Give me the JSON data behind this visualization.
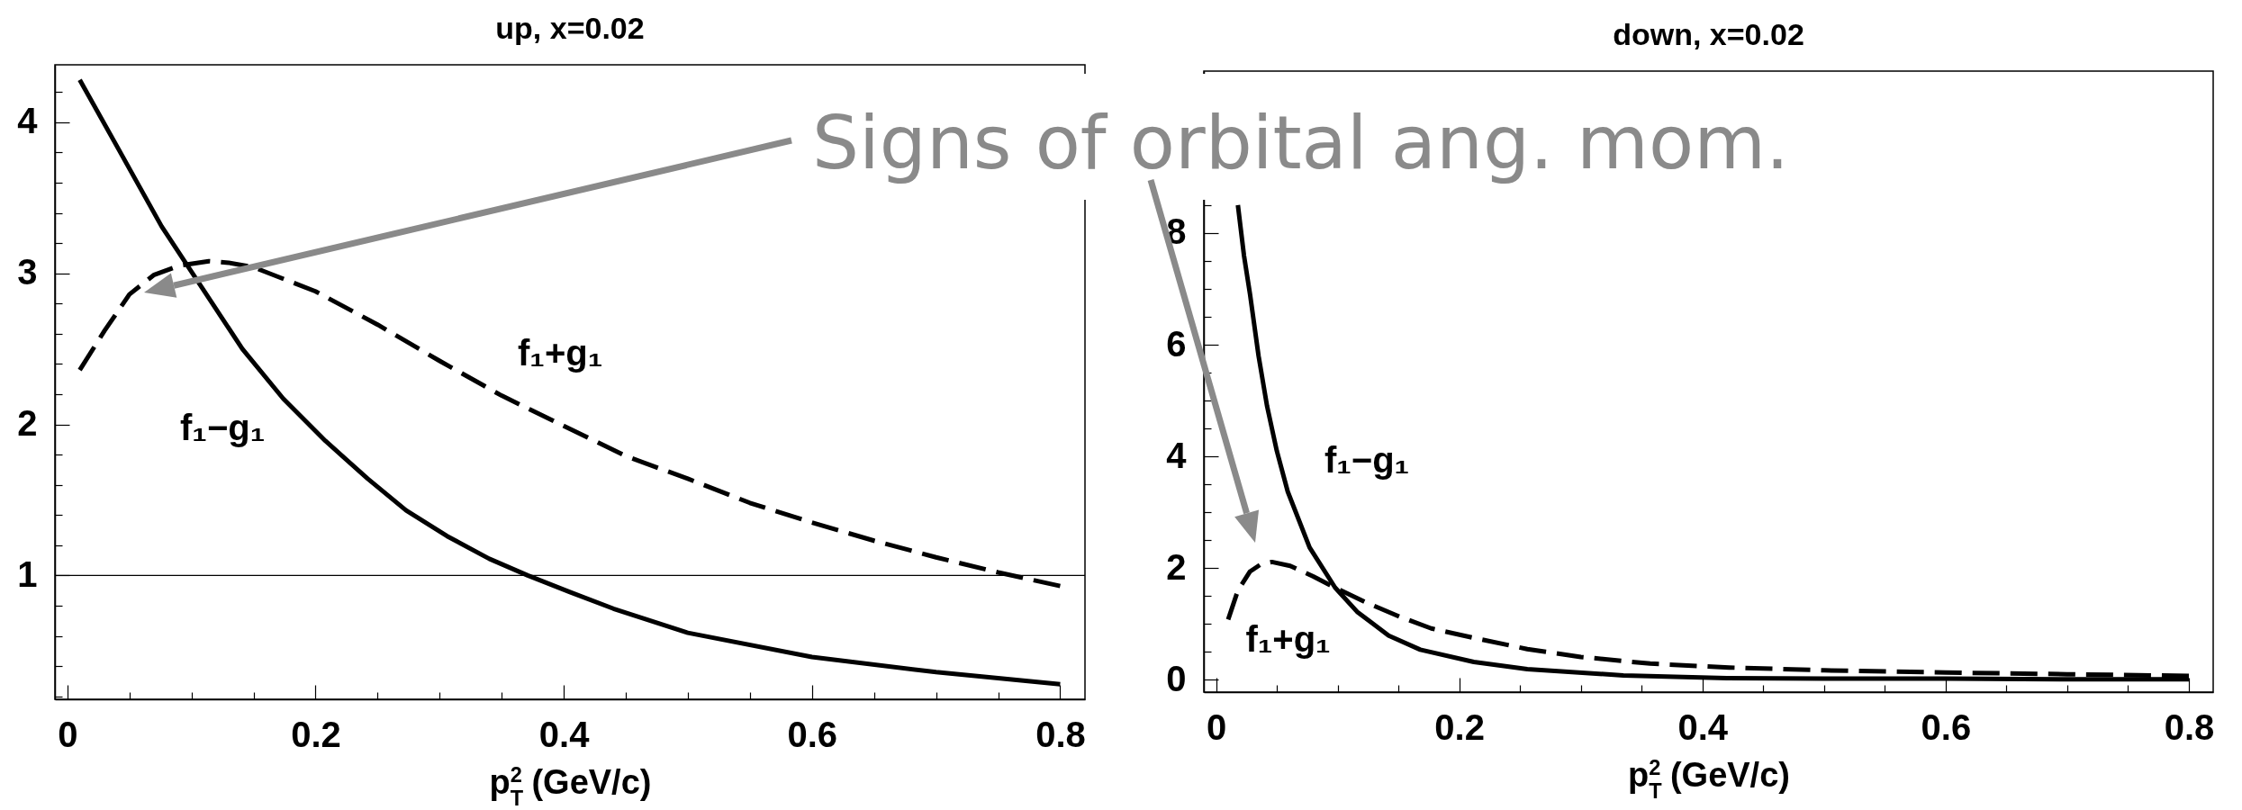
{
  "chart_data": [
    {
      "type": "line",
      "title": "up, x=0.02",
      "xlabel": "p$_{T}$$^{2}$ (GeV/c)",
      "xlim": [
        -0.01,
        0.82
      ],
      "ylim": [
        0.18,
        4.38
      ],
      "xticks": [
        0,
        {
          "value": 0.05,
          "label": null
        },
        {
          "value": 0.1,
          "label": null
        },
        {
          "value": 0.15,
          "label": null
        },
        0.2,
        {
          "value": 0.25,
          "label": null
        },
        {
          "value": 0.3,
          "label": null
        },
        {
          "value": 0.35,
          "label": null
        },
        0.4,
        {
          "value": 0.45,
          "label": null
        },
        {
          "value": 0.5,
          "label": null
        },
        {
          "value": 0.55,
          "label": null
        },
        0.6,
        {
          "value": 0.65,
          "label": null
        },
        {
          "value": 0.7,
          "label": null
        },
        {
          "value": 0.75,
          "label": null
        },
        0.8
      ],
      "yticks": [
        {
          "value": 0.2,
          "label": null
        },
        {
          "value": 0.4,
          "label": null
        },
        {
          "value": 0.6,
          "label": null
        },
        {
          "value": 0.8,
          "label": null
        },
        1,
        {
          "value": 1.2,
          "label": null
        },
        {
          "value": 1.4,
          "label": null
        },
        {
          "value": 1.6,
          "label": null
        },
        {
          "value": 1.8,
          "label": null
        },
        2,
        {
          "value": 2.2,
          "label": null
        },
        {
          "value": 2.4,
          "label": null
        },
        {
          "value": 2.6,
          "label": null
        },
        {
          "value": 2.8,
          "label": null
        },
        3,
        {
          "value": 3.2,
          "label": null
        },
        {
          "value": 3.4,
          "label": null
        },
        {
          "value": 3.6,
          "label": null
        },
        {
          "value": 3.8,
          "label": null
        },
        4,
        {
          "value": 4.2,
          "label": null
        }
      ],
      "ref_lines": [
        {
          "axis": "y",
          "value": 1,
          "color": "#000000"
        }
      ],
      "annotations": [
        "Signs of orbital ang. mom."
      ],
      "series": [
        {
          "name": "f₁−g₁",
          "color": "#000000",
          "line_style": "solid",
          "x": [
            0.01,
            0.04,
            0.076,
            0.1,
            0.141,
            0.174,
            0.208,
            0.242,
            0.273,
            0.306,
            0.34,
            0.371,
            0.405,
            0.44,
            0.5,
            0.6,
            0.7,
            0.8
          ],
          "values": [
            4.28,
            3.84,
            3.31,
            3.01,
            2.5,
            2.17,
            1.89,
            1.64,
            1.43,
            1.26,
            1.11,
            1.0,
            0.89,
            0.78,
            0.62,
            0.46,
            0.36,
            0.28
          ]
        },
        {
          "name": "f₁+g₁",
          "color": "#000000",
          "line_style": "dashed",
          "x": [
            0.01,
            0.03,
            0.05,
            0.07,
            0.09,
            0.114,
            0.13,
            0.15,
            0.2,
            0.25,
            0.3,
            0.35,
            0.4,
            0.45,
            0.5,
            0.55,
            0.6,
            0.65,
            0.7,
            0.75,
            0.8
          ],
          "values": [
            2.36,
            2.62,
            2.86,
            2.99,
            3.05,
            3.08,
            3.07,
            3.04,
            2.88,
            2.66,
            2.42,
            2.19,
            1.99,
            1.79,
            1.64,
            1.48,
            1.35,
            1.23,
            1.12,
            1.02,
            0.93
          ]
        }
      ]
    },
    {
      "type": "line",
      "title": "down, x=0.02",
      "xlabel": "p$_{T}$$^{2}$ (GeV/c)",
      "xlim": [
        -0.01,
        0.82
      ],
      "ylim": [
        -0.22,
        10.9
      ],
      "xticks": [
        0,
        {
          "value": 0.05,
          "label": null
        },
        {
          "value": 0.1,
          "label": null
        },
        {
          "value": 0.15,
          "label": null
        },
        0.2,
        {
          "value": 0.25,
          "label": null
        },
        {
          "value": 0.3,
          "label": null
        },
        {
          "value": 0.35,
          "label": null
        },
        0.4,
        {
          "value": 0.45,
          "label": null
        },
        {
          "value": 0.5,
          "label": null
        },
        {
          "value": 0.55,
          "label": null
        },
        0.6,
        {
          "value": 0.65,
          "label": null
        },
        {
          "value": 0.7,
          "label": null
        },
        {
          "value": 0.75,
          "label": null
        },
        0.8
      ],
      "yticks": [
        0,
        {
          "value": 0.5,
          "label": null
        },
        {
          "value": 1,
          "label": null
        },
        {
          "value": 1.5,
          "label": null
        },
        2,
        {
          "value": 2.5,
          "label": null
        },
        {
          "value": 3,
          "label": null
        },
        {
          "value": 3.5,
          "label": null
        },
        4,
        {
          "value": 4.5,
          "label": null
        },
        {
          "value": 5,
          "label": null
        },
        {
          "value": 5.5,
          "label": null
        },
        6,
        {
          "value": 6.5,
          "label": null
        },
        {
          "value": 7,
          "label": null
        },
        {
          "value": 7.5,
          "label": null
        },
        8,
        {
          "value": 8.5,
          "label": null
        }
      ],
      "series": [
        {
          "name": "f₁−g₁",
          "color": "#000000",
          "line_style": "solid",
          "x": [
            0.018,
            0.023,
            0.028,
            0.035,
            0.042,
            0.05,
            0.059,
            0.077,
            0.098,
            0.116,
            0.142,
            0.168,
            0.212,
            0.256,
            0.335,
            0.42,
            0.5,
            0.6,
            0.7,
            0.8
          ],
          "values": [
            8.5,
            7.6,
            6.9,
            5.8,
            4.9,
            4.1,
            3.37,
            2.37,
            1.65,
            1.22,
            0.79,
            0.54,
            0.32,
            0.19,
            0.08,
            0.03,
            0.02,
            0.02,
            0.01,
            0.01
          ]
        },
        {
          "name": "f₁+g₁",
          "color": "#000000",
          "line_style": "dashed",
          "x": [
            0.01,
            0.018,
            0.028,
            0.037,
            0.046,
            0.061,
            0.08,
            0.098,
            0.125,
            0.151,
            0.177,
            0.212,
            0.256,
            0.3,
            0.357,
            0.422,
            0.5,
            0.6,
            0.7,
            0.8
          ],
          "values": [
            1.08,
            1.6,
            1.94,
            2.07,
            2.11,
            2.04,
            1.85,
            1.65,
            1.37,
            1.13,
            0.92,
            0.75,
            0.55,
            0.41,
            0.29,
            0.22,
            0.17,
            0.13,
            0.1,
            0.07
          ]
        }
      ]
    }
  ]
}
